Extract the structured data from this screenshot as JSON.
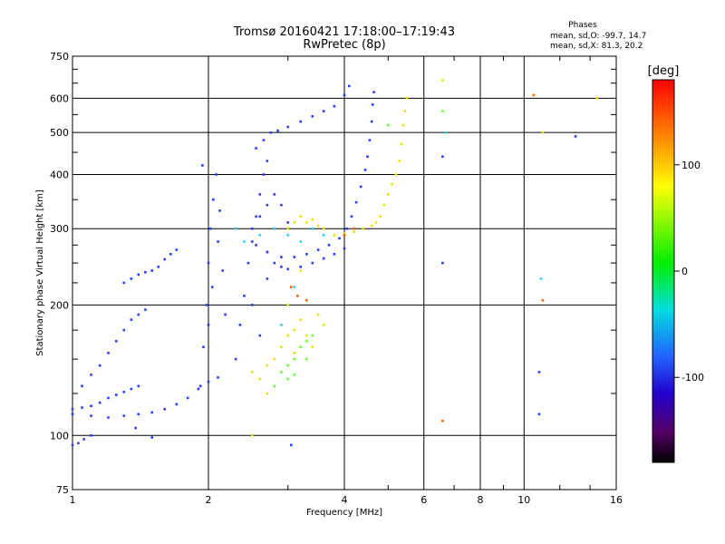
{
  "chart_data": {
    "type": "scatter",
    "title": "Tromsø 20160421 17:18:00–17:19:43",
    "subtitle": "RwPretec (8p)",
    "xlabel": "Frequency [MHz]",
    "ylabel": "Stationary phase Virtual Height [km]",
    "xscale": "log",
    "yscale": "log",
    "xlim": [
      1,
      16
    ],
    "ylim": [
      75,
      750
    ],
    "x_ticks": [
      1,
      2,
      4,
      6,
      8,
      10,
      16
    ],
    "y_ticks": [
      75,
      100,
      200,
      300,
      400,
      500,
      600,
      750
    ],
    "grid": true,
    "stats": {
      "heading": "Phases",
      "line_o": "mean, sd,O: -99.7, 14.7",
      "line_x": "mean, sd,X:  81.3, 20.2"
    },
    "colorbar": {
      "label": "[deg]",
      "range": [
        -180,
        180
      ],
      "ticks": [
        100,
        0,
        -100
      ]
    },
    "series": [
      {
        "color": "#2a3cff",
        "points": [
          [
            1.0,
            115
          ],
          [
            1.05,
            116
          ],
          [
            1.1,
            117
          ],
          [
            1.15,
            119
          ],
          [
            1.2,
            122
          ],
          [
            1.25,
            124
          ],
          [
            1.3,
            126
          ],
          [
            1.35,
            128
          ],
          [
            1.4,
            130
          ],
          [
            1.0,
            112
          ],
          [
            1.1,
            111
          ],
          [
            1.2,
            110
          ],
          [
            1.3,
            111
          ],
          [
            1.4,
            112
          ],
          [
            1.5,
            113
          ],
          [
            1.6,
            115
          ],
          [
            1.7,
            118
          ],
          [
            1.8,
            122
          ],
          [
            1.9,
            128
          ],
          [
            2.0,
            133
          ],
          [
            2.1,
            136
          ],
          [
            1.05,
            130
          ],
          [
            1.1,
            138
          ],
          [
            1.15,
            145
          ],
          [
            1.2,
            155
          ],
          [
            1.25,
            165
          ],
          [
            1.3,
            175
          ],
          [
            1.35,
            185
          ],
          [
            1.4,
            190
          ],
          [
            1.45,
            195
          ],
          [
            1.3,
            225
          ],
          [
            1.35,
            230
          ],
          [
            1.4,
            235
          ],
          [
            1.45,
            238
          ],
          [
            1.5,
            240
          ],
          [
            1.55,
            245
          ],
          [
            1.6,
            255
          ],
          [
            1.65,
            262
          ],
          [
            1.7,
            268
          ],
          [
            1.0,
            95
          ],
          [
            1.03,
            96
          ],
          [
            1.06,
            98
          ],
          [
            1.1,
            100
          ],
          [
            1.38,
            104
          ],
          [
            1.5,
            99
          ],
          [
            1.92,
            130
          ],
          [
            1.95,
            160
          ],
          [
            1.98,
            200
          ],
          [
            2.0,
            250
          ],
          [
            2.02,
            300
          ],
          [
            2.05,
            350
          ],
          [
            2.08,
            400
          ],
          [
            1.94,
            420
          ],
          [
            2.0,
            180
          ],
          [
            2.04,
            220
          ],
          [
            2.1,
            280
          ],
          [
            2.12,
            330
          ],
          [
            2.15,
            240
          ],
          [
            2.18,
            190
          ],
          [
            2.3,
            150
          ],
          [
            2.35,
            180
          ],
          [
            2.4,
            210
          ],
          [
            2.45,
            250
          ],
          [
            2.5,
            280
          ],
          [
            2.55,
            320
          ],
          [
            2.6,
            360
          ],
          [
            2.65,
            400
          ],
          [
            2.7,
            430
          ],
          [
            2.5,
            200
          ],
          [
            2.6,
            170
          ],
          [
            2.7,
            230
          ],
          [
            2.55,
            275
          ],
          [
            2.7,
            265
          ],
          [
            2.9,
            258
          ],
          [
            3.1,
            258
          ],
          [
            3.3,
            262
          ],
          [
            3.5,
            268
          ],
          [
            3.7,
            275
          ],
          [
            3.9,
            285
          ],
          [
            4.0,
            290
          ],
          [
            2.7,
            265
          ],
          [
            2.8,
            250
          ],
          [
            2.9,
            245
          ],
          [
            3.0,
            242
          ],
          [
            3.2,
            245
          ],
          [
            3.4,
            250
          ],
          [
            3.6,
            256
          ],
          [
            3.8,
            262
          ],
          [
            4.0,
            270
          ],
          [
            2.55,
            460
          ],
          [
            2.65,
            480
          ],
          [
            2.75,
            500
          ],
          [
            2.85,
            505
          ],
          [
            3.0,
            515
          ],
          [
            3.2,
            530
          ],
          [
            3.4,
            545
          ],
          [
            3.6,
            560
          ],
          [
            3.8,
            575
          ],
          [
            4.0,
            610
          ],
          [
            4.1,
            640
          ],
          [
            2.5,
            300
          ],
          [
            2.6,
            320
          ],
          [
            2.7,
            340
          ],
          [
            2.8,
            360
          ],
          [
            2.9,
            340
          ],
          [
            3.0,
            310
          ],
          [
            4.05,
            300
          ],
          [
            4.15,
            320
          ],
          [
            4.25,
            345
          ],
          [
            4.35,
            375
          ],
          [
            4.45,
            410
          ],
          [
            4.5,
            440
          ],
          [
            4.55,
            480
          ],
          [
            4.6,
            530
          ],
          [
            4.62,
            580
          ],
          [
            4.65,
            620
          ],
          [
            6.6,
            440
          ],
          [
            6.6,
            250
          ],
          [
            10.8,
            140
          ],
          [
            10.8,
            112
          ],
          [
            13.0,
            490
          ],
          [
            3.05,
            95
          ]
        ]
      },
      {
        "color": "#33ccff",
        "points": [
          [
            2.3,
            300
          ],
          [
            2.4,
            280
          ],
          [
            2.6,
            290
          ],
          [
            2.8,
            300
          ],
          [
            3.0,
            290
          ],
          [
            3.2,
            280
          ],
          [
            3.4,
            300
          ],
          [
            3.6,
            290
          ],
          [
            2.9,
            180
          ],
          [
            3.0,
            200
          ],
          [
            3.1,
            220
          ],
          [
            6.7,
            500
          ],
          [
            10.9,
            230
          ]
        ]
      },
      {
        "color": "#e6e600",
        "points": [
          [
            3.0,
            300
          ],
          [
            3.1,
            310
          ],
          [
            3.2,
            320
          ],
          [
            3.3,
            310
          ],
          [
            3.4,
            315
          ],
          [
            3.5,
            305
          ],
          [
            3.6,
            300
          ],
          [
            3.8,
            290
          ],
          [
            4.0,
            292
          ],
          [
            4.2,
            295
          ],
          [
            4.4,
            300
          ],
          [
            4.6,
            305
          ],
          [
            4.7,
            310
          ],
          [
            4.8,
            320
          ],
          [
            4.9,
            340
          ],
          [
            5.0,
            360
          ],
          [
            5.1,
            380
          ],
          [
            5.2,
            400
          ],
          [
            5.3,
            430
          ],
          [
            5.35,
            470
          ],
          [
            5.4,
            520
          ],
          [
            5.45,
            560
          ],
          [
            5.5,
            600
          ],
          [
            2.5,
            140
          ],
          [
            2.6,
            135
          ],
          [
            2.7,
            145
          ],
          [
            2.8,
            150
          ],
          [
            2.9,
            160
          ],
          [
            3.0,
            170
          ],
          [
            3.1,
            175
          ],
          [
            3.2,
            185
          ],
          [
            3.3,
            170
          ],
          [
            3.4,
            160
          ],
          [
            3.5,
            190
          ],
          [
            3.6,
            180
          ],
          [
            3.1,
            155
          ],
          [
            3.0,
            200
          ],
          [
            2.7,
            125
          ],
          [
            6.6,
            660
          ],
          [
            11.0,
            500
          ],
          [
            14.5,
            600
          ],
          [
            2.5,
            100
          ],
          [
            3.2,
            240
          ]
        ]
      },
      {
        "color": "#66ff33",
        "points": [
          [
            2.8,
            130
          ],
          [
            2.9,
            140
          ],
          [
            3.0,
            145
          ],
          [
            3.1,
            150
          ],
          [
            3.2,
            160
          ],
          [
            3.3,
            165
          ],
          [
            3.4,
            170
          ],
          [
            3.0,
            135
          ],
          [
            3.1,
            138
          ],
          [
            3.3,
            150
          ],
          [
            5.0,
            520
          ],
          [
            6.6,
            560
          ]
        ]
      },
      {
        "color": "#ff6600",
        "points": [
          [
            3.05,
            220
          ],
          [
            3.15,
            210
          ],
          [
            3.3,
            205
          ],
          [
            4.0,
            290
          ],
          [
            4.2,
            300
          ],
          [
            6.6,
            108
          ],
          [
            11.0,
            205
          ],
          [
            10.5,
            610
          ]
        ]
      }
    ]
  }
}
